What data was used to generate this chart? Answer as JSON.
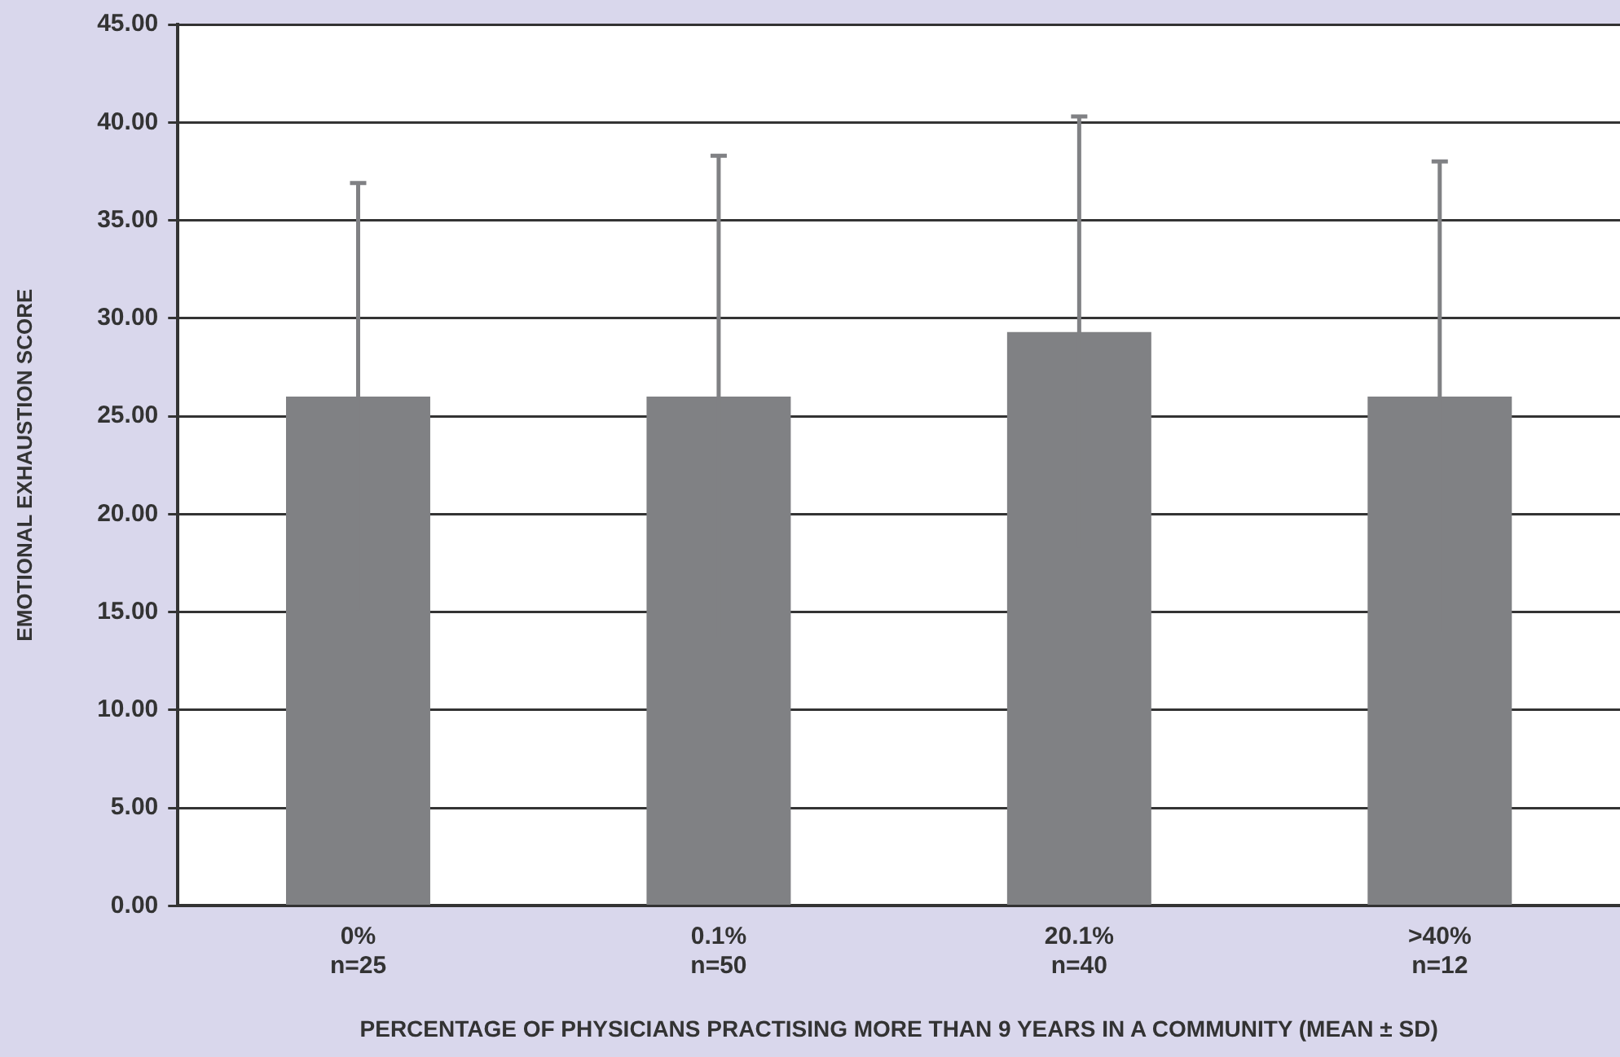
{
  "chart_data": {
    "type": "bar",
    "categories": [
      "0%\nn=25",
      "0.1%\nn=50",
      "20.1%\nn=40",
      ">40%\nn=12"
    ],
    "values": [
      26.0,
      26.0,
      29.3,
      26.0
    ],
    "errors": [
      10.9,
      12.3,
      11.0,
      12.0
    ],
    "color": "#808184",
    "xlabel": "PERCENTAGE OF PHYSICIANS PRACTISING MORE THAN 9 YEARS IN A COMMUNITY (MEAN ± SD)",
    "ylabel": "EMOTIONAL EXHAUSTION SCORE",
    "ylim": [
      0,
      45
    ],
    "yticks": [
      {
        "value": 0,
        "label": "0.00"
      },
      {
        "value": 5,
        "label": "5.00"
      },
      {
        "value": 10,
        "label": "10.00"
      },
      {
        "value": 15,
        "label": "15.00"
      },
      {
        "value": 20,
        "label": "20.00"
      },
      {
        "value": 25,
        "label": "25.00"
      },
      {
        "value": 30,
        "label": "30.00"
      },
      {
        "value": 35,
        "label": "35.00"
      },
      {
        "value": 40,
        "label": "40.00"
      },
      {
        "value": 45,
        "label": "45.00"
      }
    ],
    "grid": "y",
    "legend": false
  }
}
